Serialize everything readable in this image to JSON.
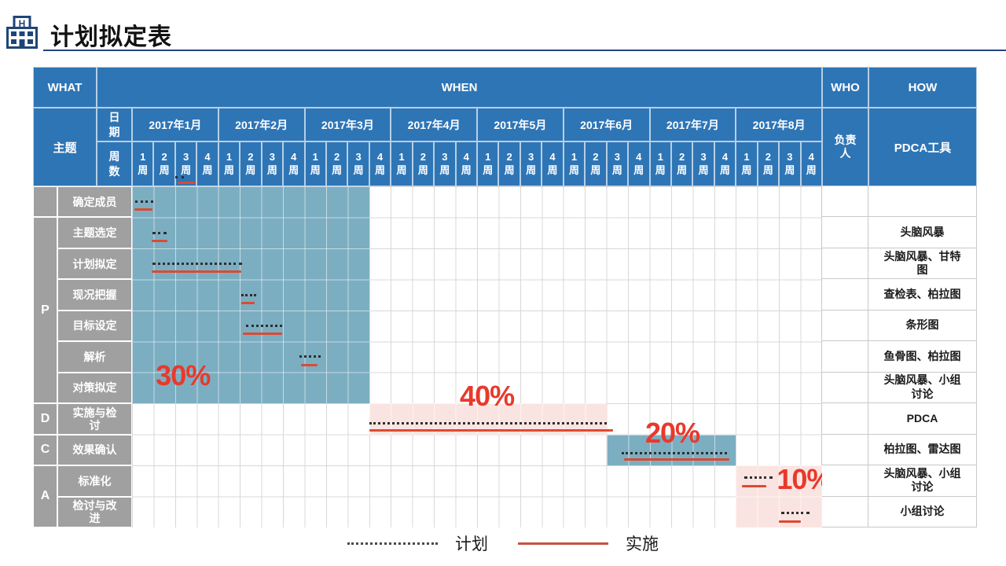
{
  "title": "计划拟定表",
  "header": {
    "what": "WHAT",
    "when": "WHEN",
    "who": "WHO",
    "how": "HOW",
    "topic": "主题",
    "date": "日期",
    "weeks": "周数",
    "who_sub": "负责人",
    "how_sub": "PDCA工具"
  },
  "months": [
    "2017年1月",
    "2017年2月",
    "2017年3月",
    "2017年4月",
    "2017年5月",
    "2017年6月",
    "2017年7月",
    "2017年8月"
  ],
  "week_numbers": [
    "1",
    "2",
    "3",
    "4"
  ],
  "week_suffix": "周",
  "phases": [
    {
      "label": "",
      "row_start": 0,
      "row_span": 1
    },
    {
      "label": "P",
      "row_start": 1,
      "row_span": 6
    },
    {
      "label": "D",
      "row_start": 7,
      "row_span": 1
    },
    {
      "label": "C",
      "row_start": 8,
      "row_span": 1
    },
    {
      "label": "A",
      "row_start": 9,
      "row_span": 2
    }
  ],
  "rows": [
    {
      "task": "确定成员",
      "how": "",
      "plan": [
        0.15,
        1.0
      ],
      "impl": [
        0.1,
        0.95
      ]
    },
    {
      "task": "主题选定",
      "how": "头脑风暴",
      "plan": [
        0.95,
        1.6
      ],
      "impl": [
        0.9,
        1.65
      ]
    },
    {
      "task": "计划拟定",
      "how": "头脑风暴、甘特图",
      "plan": [
        0.95,
        5.1
      ],
      "impl": [
        0.9,
        5.05
      ]
    },
    {
      "task": "现况把握",
      "how": "查检表、柏拉图",
      "plan": [
        5.05,
        5.75
      ],
      "impl": [
        5.05,
        5.7
      ]
    },
    {
      "task": "目标设定",
      "how": "条形图",
      "plan": [
        5.3,
        6.95
      ],
      "impl": [
        5.15,
        6.95
      ]
    },
    {
      "task": "解析",
      "how": "鱼骨图、柏拉图",
      "plan": [
        7.75,
        8.75
      ],
      "impl": [
        7.85,
        8.6
      ]
    },
    {
      "task": "对策拟定",
      "how": "头脑风暴、小组讨论",
      "plan": null,
      "impl": null
    },
    {
      "task": "实施与检讨",
      "how": "PDCA",
      "plan": [
        11.0,
        22.0
      ],
      "impl": [
        11.0,
        22.3
      ]
    },
    {
      "task": "效果确认",
      "how": "柏拉图、雷达图",
      "plan": [
        22.7,
        27.6
      ],
      "impl": [
        22.8,
        27.7
      ]
    },
    {
      "task": "标准化",
      "how": "头脑风暴、小组讨论",
      "plan": [
        28.4,
        29.7
      ],
      "impl": [
        28.3,
        29.4
      ]
    },
    {
      "task": "检讨与改进",
      "how": "小组讨论",
      "plan": [
        30.1,
        31.4
      ],
      "impl": [
        30.0,
        31.0
      ]
    }
  ],
  "blocks": [
    {
      "row_start": 0,
      "row_end": 7,
      "week_start": 0,
      "week_end": 11,
      "color": "teal"
    },
    {
      "row_start": 7,
      "row_end": 8,
      "week_start": 11,
      "week_end": 22,
      "color": "pink"
    },
    {
      "row_start": 8,
      "row_end": 9,
      "week_start": 22,
      "week_end": 28,
      "color": "teal"
    },
    {
      "row_start": 9,
      "row_end": 11,
      "week_start": 28,
      "week_end": 32,
      "color": "pink"
    }
  ],
  "percents": [
    {
      "label": "30%",
      "week": 1.1,
      "row": 5.65
    },
    {
      "label": "40%",
      "week": 15.2,
      "row": 6.3
    },
    {
      "label": "20%",
      "week": 23.8,
      "row": 7.5
    },
    {
      "label": "10%",
      "week": 29.9,
      "row": 9.0
    }
  ],
  "legend": [
    {
      "type": "plan",
      "label": "计划"
    },
    {
      "type": "impl",
      "label": "实施"
    }
  ],
  "colors": {
    "header_blue": "#2E75B6",
    "label_gray": "#A0A0A0",
    "teal_block": "#7CAEC2",
    "pink_block": "#FAE4E1",
    "impl_red": "#DC4A32",
    "percent_red": "#E8392B",
    "plan_dot": "#2F2F2F"
  },
  "chart_data": {
    "type": "table",
    "subtype": "gantt",
    "title": "计划拟定表",
    "timeline": {
      "months": [
        "2017年1月",
        "2017年2月",
        "2017年3月",
        "2017年4月",
        "2017年5月",
        "2017年6月",
        "2017年7月",
        "2017年8月"
      ],
      "weeks_per_month": 4,
      "total_weeks": 32
    },
    "columns": [
      "WHAT",
      "WHEN",
      "WHO",
      "HOW"
    ],
    "phase_weights": {
      "P": "30%",
      "D": "40%",
      "C": "20%",
      "A": "10%"
    },
    "tasks": [
      {
        "phase": "",
        "task": "确定成员",
        "plan_weeks": [
          1,
          1
        ],
        "impl_weeks": [
          1,
          1
        ],
        "tools": ""
      },
      {
        "phase": "P",
        "task": "主题选定",
        "plan_weeks": [
          2,
          2
        ],
        "impl_weeks": [
          2,
          2
        ],
        "tools": "头脑风暴"
      },
      {
        "phase": "P",
        "task": "计划拟定",
        "plan_weeks": [
          2,
          5
        ],
        "impl_weeks": [
          2,
          5
        ],
        "tools": "头脑风暴、甘特图"
      },
      {
        "phase": "P",
        "task": "现况把握",
        "plan_weeks": [
          6,
          6
        ],
        "impl_weeks": [
          6,
          6
        ],
        "tools": "查检表、柏拉图"
      },
      {
        "phase": "P",
        "task": "目标设定",
        "plan_weeks": [
          6,
          7
        ],
        "impl_weeks": [
          6,
          7
        ],
        "tools": "条形图"
      },
      {
        "phase": "P",
        "task": "解析",
        "plan_weeks": [
          8,
          8
        ],
        "impl_weeks": [
          8,
          8
        ],
        "tools": "鱼骨图、柏拉图"
      },
      {
        "phase": "P",
        "task": "对策拟定",
        "plan_weeks": null,
        "impl_weeks": null,
        "tools": "头脑风暴、小组讨论"
      },
      {
        "phase": "D",
        "task": "实施与检讨",
        "plan_weeks": [
          12,
          22
        ],
        "impl_weeks": [
          12,
          22
        ],
        "tools": "PDCA"
      },
      {
        "phase": "C",
        "task": "效果确认",
        "plan_weeks": [
          23,
          28
        ],
        "impl_weeks": [
          23,
          28
        ],
        "tools": "柏拉图、雷达图"
      },
      {
        "phase": "A",
        "task": "标准化",
        "plan_weeks": [
          29,
          30
        ],
        "impl_weeks": [
          29,
          30
        ],
        "tools": "头脑风暴、小组讨论"
      },
      {
        "phase": "A",
        "task": "检讨与改进",
        "plan_weeks": [
          31,
          32
        ],
        "impl_weeks": [
          31,
          32
        ],
        "tools": "小组讨论"
      }
    ],
    "legend": [
      "计划 (dotted)",
      "实施 (red solid)"
    ]
  }
}
